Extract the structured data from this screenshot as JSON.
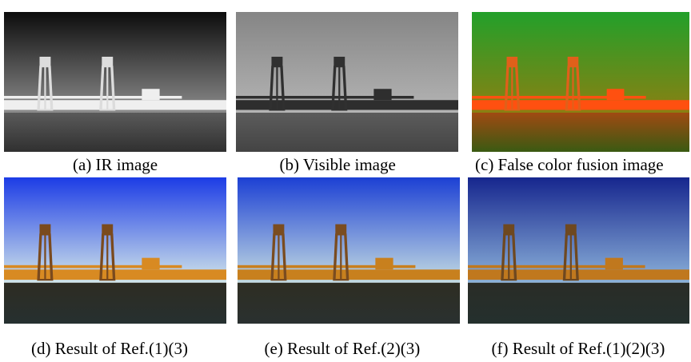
{
  "figure": {
    "panels": [
      {
        "caption": "(a) IR image"
      },
      {
        "caption": "(b) Visible image"
      },
      {
        "caption": "(c) False color fusion image"
      },
      {
        "caption": "(d) Result of Ref.(1)(3)"
      },
      {
        "caption": "(e) Result of Ref.(2)(3)"
      },
      {
        "caption": "(f) Result of Ref.(1)(2)(3)"
      }
    ]
  }
}
